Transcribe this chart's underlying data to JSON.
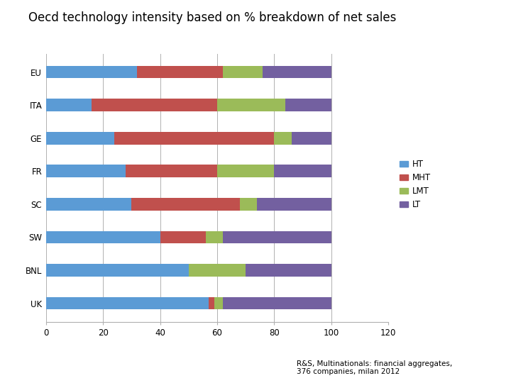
{
  "title": "Oecd technology intensity based on % breakdown of net sales",
  "categories": [
    "EU",
    "ITA",
    "GE",
    "FR",
    "SC",
    "SW",
    "BNL",
    "UK"
  ],
  "series": {
    "HT": [
      32,
      16,
      24,
      28,
      30,
      40,
      50,
      57
    ],
    "MHT": [
      30,
      44,
      56,
      32,
      38,
      16,
      0,
      2
    ],
    "LMT": [
      14,
      24,
      6,
      20,
      6,
      6,
      20,
      3
    ],
    "LT": [
      24,
      16,
      14,
      20,
      26,
      38,
      30,
      38
    ]
  },
  "colors": {
    "HT": "#5b9bd5",
    "MHT": "#c0504d",
    "LMT": "#9bbb59",
    "LT": "#7360a0"
  },
  "xlim": [
    0,
    120
  ],
  "xticks": [
    0,
    20,
    40,
    60,
    80,
    100,
    120
  ],
  "footnote": "R&S, Multinationals: financial aggregates,\n376 companies, milan 2012",
  "background_color": "#ffffff"
}
